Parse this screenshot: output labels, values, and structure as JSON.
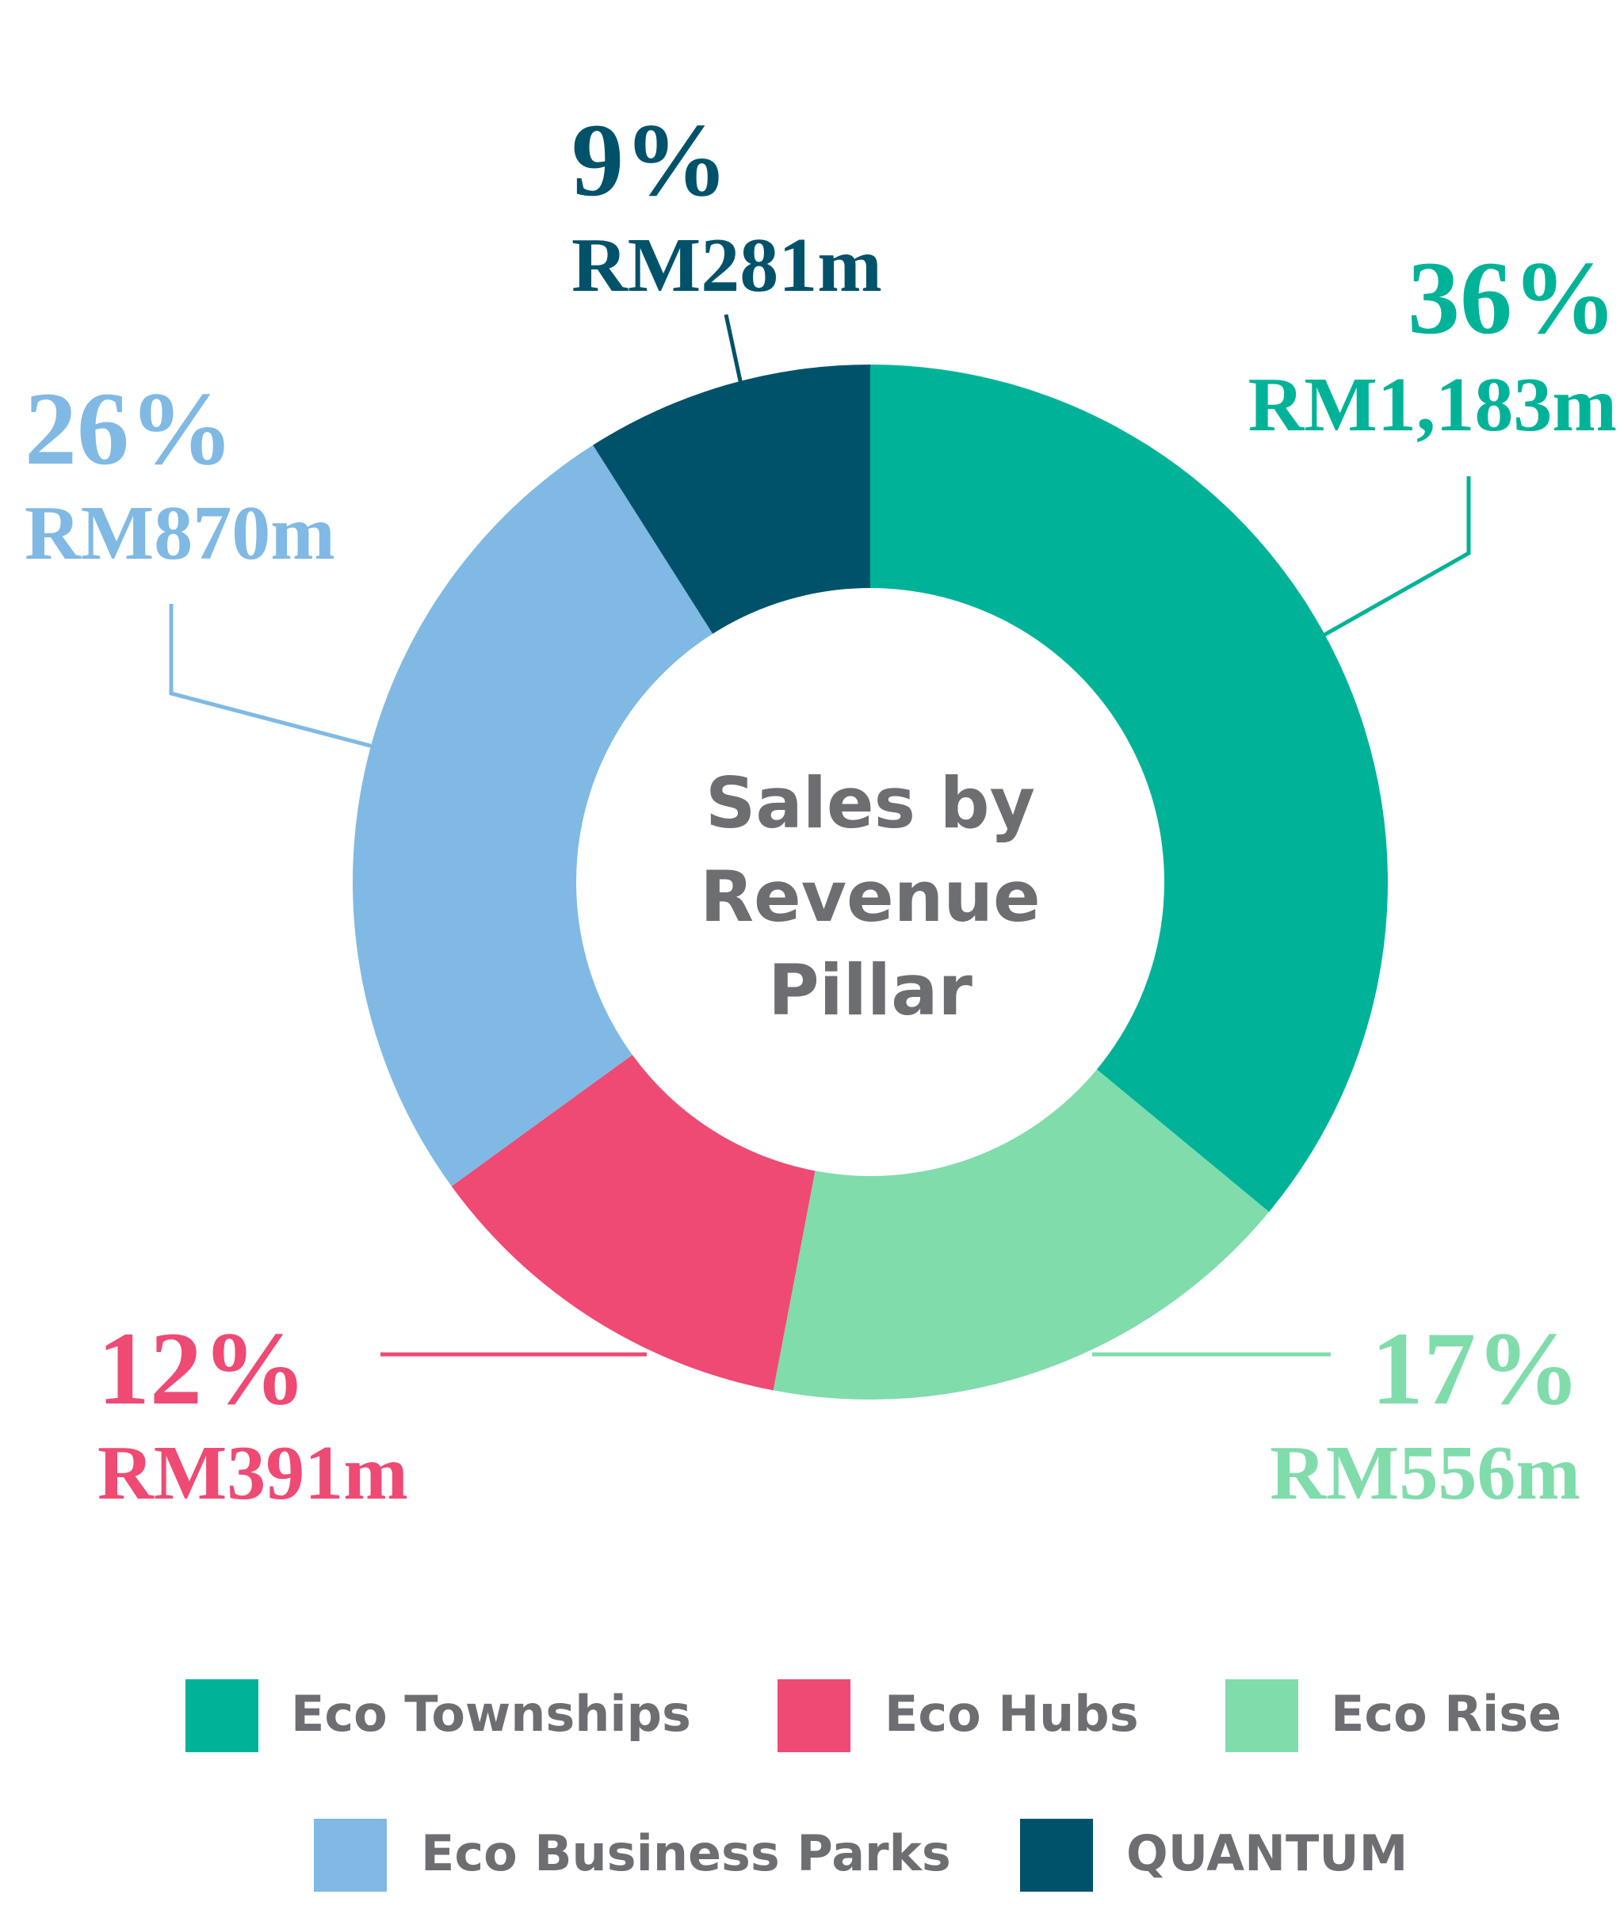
{
  "chart_data": {
    "type": "pie",
    "title": "Sales by Revenue Pillar",
    "categories": [
      "Eco Townships",
      "Eco Rise",
      "Eco Hubs",
      "Eco Business Parks",
      "QUANTUM"
    ],
    "values": [
      36,
      17,
      12,
      26,
      9
    ],
    "value_labels": [
      "36%",
      "17%",
      "12%",
      "26%",
      "9%"
    ],
    "amounts": [
      1183,
      556,
      391,
      870,
      281
    ],
    "amount_labels": [
      "RM1,183m",
      "RM556m",
      "RM391m",
      "RM870m",
      "RM281m"
    ],
    "colors": [
      "#00b398",
      "#80dcab",
      "#ee4a74",
      "#80b9e4",
      "#00526b"
    ],
    "donut": true
  }
}
